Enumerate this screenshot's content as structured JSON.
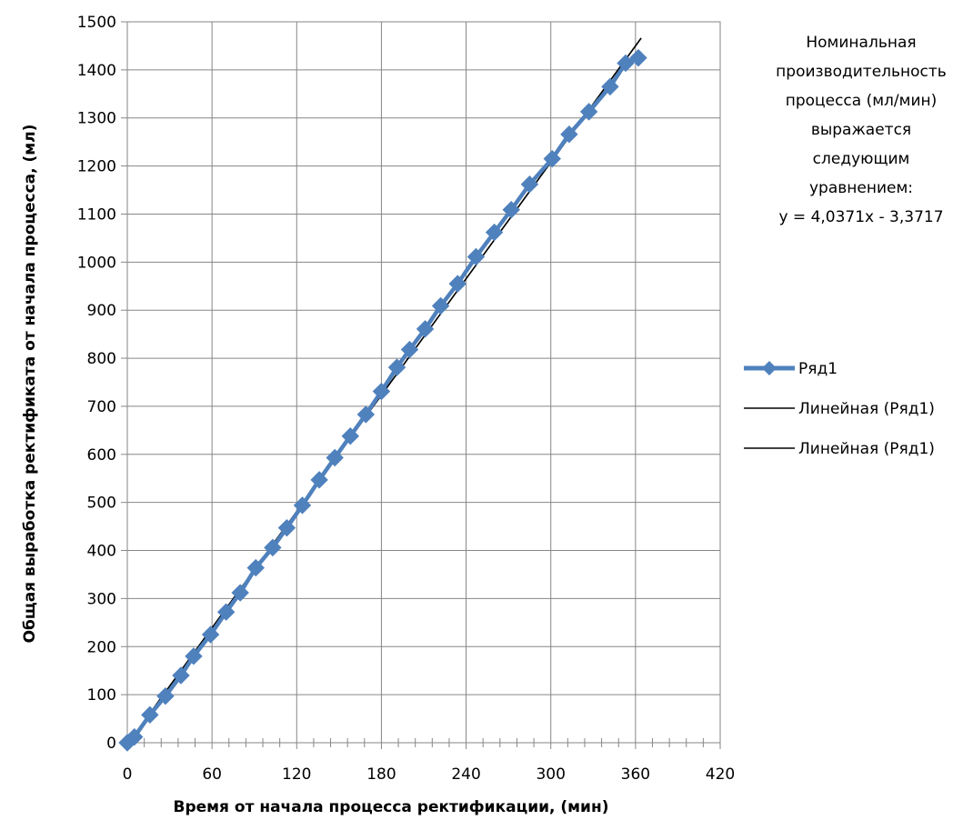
{
  "chart_data": {
    "type": "scatter",
    "xlabel": "Время от начала процесса ректификации, (мин)",
    "ylabel": "Общая выработка ректификата от начала процесса, (мл)",
    "xlim": [
      0,
      420
    ],
    "ylim": [
      0,
      1500
    ],
    "xticks": [
      0,
      60,
      120,
      180,
      240,
      300,
      360,
      420
    ],
    "yticks": [
      0,
      100,
      200,
      300,
      400,
      500,
      600,
      700,
      800,
      900,
      1000,
      1100,
      1200,
      1300,
      1400,
      1500
    ],
    "x_minor_step": 12,
    "grid": true,
    "legend_position": "right",
    "series": [
      {
        "name": "Ряд1",
        "color": "#4f81bd",
        "marker": "diamond",
        "x": [
          0,
          5,
          16,
          27,
          38,
          47,
          59,
          70,
          80,
          91,
          103,
          113,
          124,
          136,
          147,
          158,
          169,
          180,
          191,
          200,
          211,
          222,
          234,
          247,
          260,
          272,
          285,
          301,
          313,
          327,
          342,
          353,
          362
        ],
        "y": [
          0,
          12,
          58,
          97,
          140,
          180,
          225,
          272,
          312,
          364,
          406,
          447,
          494,
          547,
          593,
          638,
          683,
          731,
          781,
          818,
          861,
          909,
          955,
          1011,
          1062,
          1109,
          1162,
          1215,
          1266,
          1313,
          1365,
          1414,
          1425
        ]
      }
    ],
    "trendlines": [
      {
        "name": "Линейная (Ряд1)",
        "color": "#000000",
        "slope": 4.0371,
        "intercept": -3.3717,
        "x_range": [
          0,
          364
        ]
      },
      {
        "name": "Линейная (Ряд1)",
        "color": "#000000",
        "slope": 4.0371,
        "intercept": -3.3717,
        "x_range": [
          0,
          364
        ]
      }
    ],
    "annotation": {
      "lines": [
        "Номинальная",
        "производительность",
        "процесса (мл/мин)",
        "выражается",
        "следующим",
        "уравнением:",
        "y = 4,0371x - 3,3717"
      ]
    }
  }
}
